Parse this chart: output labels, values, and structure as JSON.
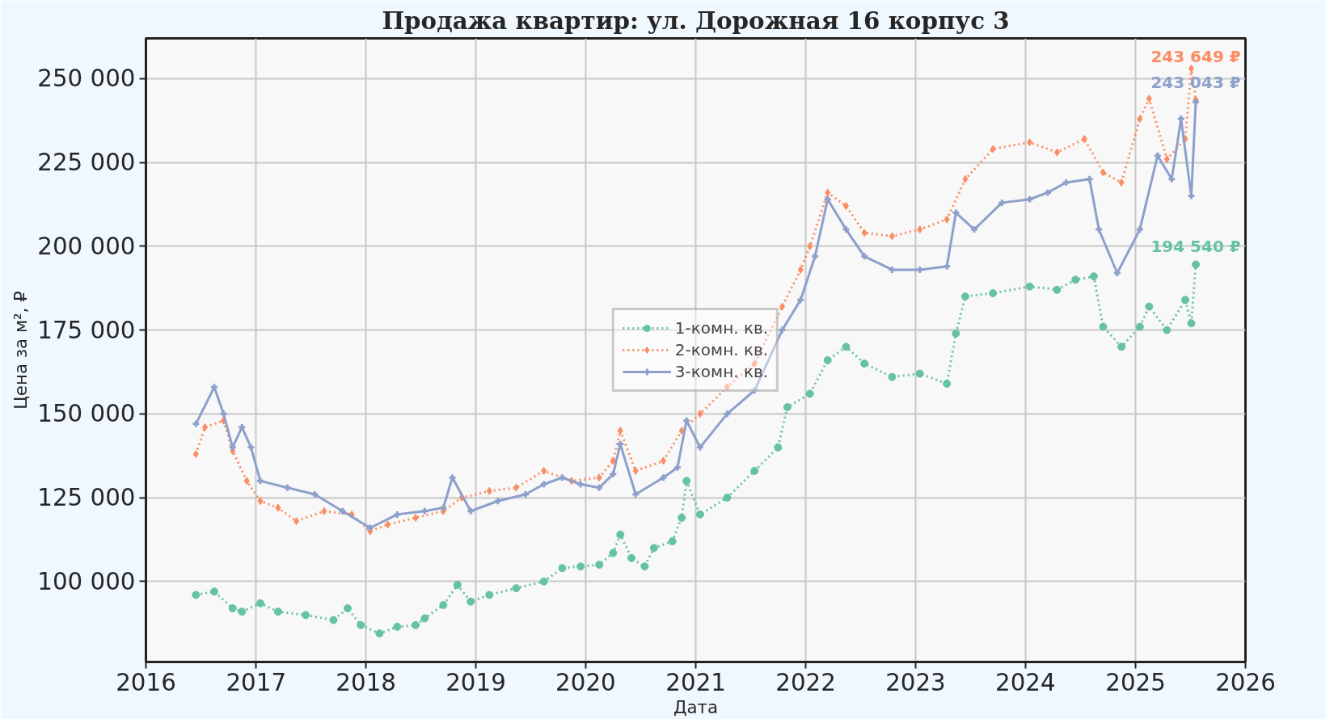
{
  "chart_data": {
    "type": "line",
    "title": "Продажа квартир: ул. Дорожная 16 корпус 3",
    "xlabel": "Дата",
    "ylabel": "Цена за м², ₽",
    "xlim": [
      "2016-01-01",
      "2026-01-01"
    ],
    "xticks": [
      {
        "value": "2016-01-01",
        "label": "2016"
      },
      {
        "value": "2017-01-01",
        "label": "2017"
      },
      {
        "value": "2018-01-01",
        "label": "2018"
      },
      {
        "value": "2019-01-01",
        "label": "2019"
      },
      {
        "value": "2020-01-01",
        "label": "2020"
      },
      {
        "value": "2021-01-01",
        "label": "2021"
      },
      {
        "value": "2022-01-01",
        "label": "2022"
      },
      {
        "value": "2023-01-01",
        "label": "2023"
      },
      {
        "value": "2024-01-01",
        "label": "2024"
      },
      {
        "value": "2025-01-01",
        "label": "2025"
      },
      {
        "value": "2026-01-01",
        "label": "2026"
      }
    ],
    "ylim": [
      76000,
      262000
    ],
    "yticks": [
      {
        "value": 100000,
        "label": "100 000"
      },
      {
        "value": 125000,
        "label": "125 000"
      },
      {
        "value": 150000,
        "label": "150 000"
      },
      {
        "value": 175000,
        "label": "175 000"
      },
      {
        "value": 200000,
        "label": "200 000"
      },
      {
        "value": 225000,
        "label": "225 000"
      },
      {
        "value": 250000,
        "label": "250 000"
      }
    ],
    "grid": true,
    "legend": "center",
    "series": [
      {
        "name": "1-комн. кв.",
        "color": "#66c2a5",
        "marker": "circle",
        "line_style": "dotted",
        "x": [
          "2016-06-15",
          "2016-08-15",
          "2016-10-15",
          "2016-11-15",
          "2017-01-15",
          "2017-03-15",
          "2017-06-15",
          "2017-09-15",
          "2017-11-01",
          "2017-12-15",
          "2018-02-15",
          "2018-04-15",
          "2018-06-15",
          "2018-07-15",
          "2018-09-15",
          "2018-11-01",
          "2018-12-15",
          "2019-02-15",
          "2019-05-15",
          "2019-08-15",
          "2019-10-15",
          "2019-12-15",
          "2020-02-15",
          "2020-04-01",
          "2020-04-25",
          "2020-06-01",
          "2020-07-15",
          "2020-08-15",
          "2020-10-15",
          "2020-11-15",
          "2020-12-01",
          "2021-01-15",
          "2021-04-15",
          "2021-07-15",
          "2021-10-01",
          "2021-11-01",
          "2022-01-15",
          "2022-03-15",
          "2022-05-15",
          "2022-07-15",
          "2022-10-15",
          "2023-01-15",
          "2023-04-15",
          "2023-05-15",
          "2023-06-15",
          "2023-09-15",
          "2024-01-15",
          "2024-04-15",
          "2024-06-15",
          "2024-08-15",
          "2024-09-15",
          "2024-11-15",
          "2025-01-15",
          "2025-02-15",
          "2025-04-15",
          "2025-06-15",
          "2025-07-05",
          "2025-07-20"
        ],
        "values": [
          96000,
          97000,
          92000,
          91000,
          93500,
          91000,
          90000,
          88500,
          92000,
          87000,
          84500,
          86500,
          87000,
          89000,
          93000,
          99000,
          94000,
          96000,
          98000,
          100000,
          104000,
          104500,
          105000,
          108500,
          114000,
          107000,
          104500,
          110000,
          112000,
          119000,
          130000,
          120000,
          125000,
          133000,
          140000,
          152000,
          156000,
          166000,
          170000,
          165000,
          161000,
          162000,
          159000,
          174000,
          185000,
          186000,
          188000,
          187000,
          190000,
          191000,
          176000,
          170000,
          176000,
          182000,
          175000,
          184000,
          177000,
          194540
        ]
      },
      {
        "name": "2-комн. кв.",
        "color": "#fc8d62",
        "marker": "diamond",
        "line_style": "dotted",
        "x": [
          "2016-06-15",
          "2016-07-15",
          "2016-09-15",
          "2016-10-15",
          "2016-12-01",
          "2017-01-15",
          "2017-03-15",
          "2017-05-15",
          "2017-08-15",
          "2017-11-15",
          "2018-01-15",
          "2018-03-15",
          "2018-06-15",
          "2018-09-15",
          "2018-11-15",
          "2019-02-15",
          "2019-05-15",
          "2019-08-15",
          "2019-11-15",
          "2020-02-15",
          "2020-04-01",
          "2020-04-25",
          "2020-06-15",
          "2020-09-15",
          "2020-11-15",
          "2021-01-15",
          "2021-04-15",
          "2021-07-15",
          "2021-10-15",
          "2021-12-15",
          "2022-01-15",
          "2022-03-15",
          "2022-05-15",
          "2022-07-15",
          "2022-10-15",
          "2023-01-15",
          "2023-04-15",
          "2023-06-15",
          "2023-09-15",
          "2024-01-15",
          "2024-04-15",
          "2024-07-15",
          "2024-09-15",
          "2024-11-15",
          "2025-01-15",
          "2025-02-15",
          "2025-04-15",
          "2025-06-15",
          "2025-07-05",
          "2025-07-20"
        ],
        "values": [
          138000,
          146000,
          148000,
          139000,
          130000,
          124000,
          122000,
          118000,
          121000,
          120000,
          115000,
          117000,
          119000,
          121000,
          125000,
          127000,
          128000,
          133000,
          130000,
          131000,
          136000,
          145000,
          133000,
          136000,
          145000,
          150000,
          158000,
          165000,
          182000,
          193000,
          200000,
          216000,
          212000,
          204000,
          203000,
          205000,
          208000,
          220000,
          229000,
          231000,
          228000,
          232000,
          222000,
          219000,
          238000,
          244000,
          226000,
          232000,
          253000,
          243649
        ]
      },
      {
        "name": "3-комн. кв.",
        "color": "#8da0cb",
        "marker": "cross",
        "line_style": "solid",
        "x": [
          "2016-06-15",
          "2016-08-15",
          "2016-09-15",
          "2016-10-15",
          "2016-11-15",
          "2016-12-15",
          "2017-01-15",
          "2017-04-15",
          "2017-07-15",
          "2017-10-15",
          "2018-01-15",
          "2018-04-15",
          "2018-07-15",
          "2018-09-15",
          "2018-10-15",
          "2018-12-15",
          "2019-03-15",
          "2019-06-15",
          "2019-08-15",
          "2019-10-15",
          "2019-12-15",
          "2020-02-15",
          "2020-04-01",
          "2020-04-25",
          "2020-06-15",
          "2020-09-15",
          "2020-11-01",
          "2020-12-01",
          "2021-01-15",
          "2021-04-15",
          "2021-07-15",
          "2021-10-15",
          "2021-12-15",
          "2022-02-01",
          "2022-03-15",
          "2022-05-15",
          "2022-07-15",
          "2022-10-15",
          "2023-01-15",
          "2023-04-15",
          "2023-05-15",
          "2023-07-15",
          "2023-10-15",
          "2024-01-15",
          "2024-03-15",
          "2024-05-15",
          "2024-08-01",
          "2024-09-01",
          "2024-11-01",
          "2025-01-15",
          "2025-03-15",
          "2025-05-01",
          "2025-06-01",
          "2025-07-05",
          "2025-07-20"
        ],
        "values": [
          147000,
          158000,
          150000,
          140000,
          146000,
          140000,
          130000,
          128000,
          126000,
          121000,
          116000,
          120000,
          121000,
          122000,
          131000,
          121000,
          124000,
          126000,
          129000,
          131000,
          129000,
          128000,
          132000,
          141000,
          126000,
          131000,
          134000,
          148000,
          140000,
          150000,
          157000,
          175000,
          184000,
          197000,
          214000,
          205000,
          197000,
          193000,
          193000,
          194000,
          210000,
          205000,
          213000,
          214000,
          216000,
          219000,
          220000,
          205000,
          192000,
          205000,
          227000,
          220000,
          238000,
          215000,
          243043
        ]
      }
    ],
    "annotations": [
      {
        "text": "243 649 ₽",
        "x": "2025-07-20",
        "y": 243649
      },
      {
        "text": "243 043 ₽",
        "x": "2025-07-20",
        "y": 243043
      },
      {
        "text": "194 540 ₽",
        "x": "2025-07-20",
        "y": 194540
      }
    ]
  }
}
